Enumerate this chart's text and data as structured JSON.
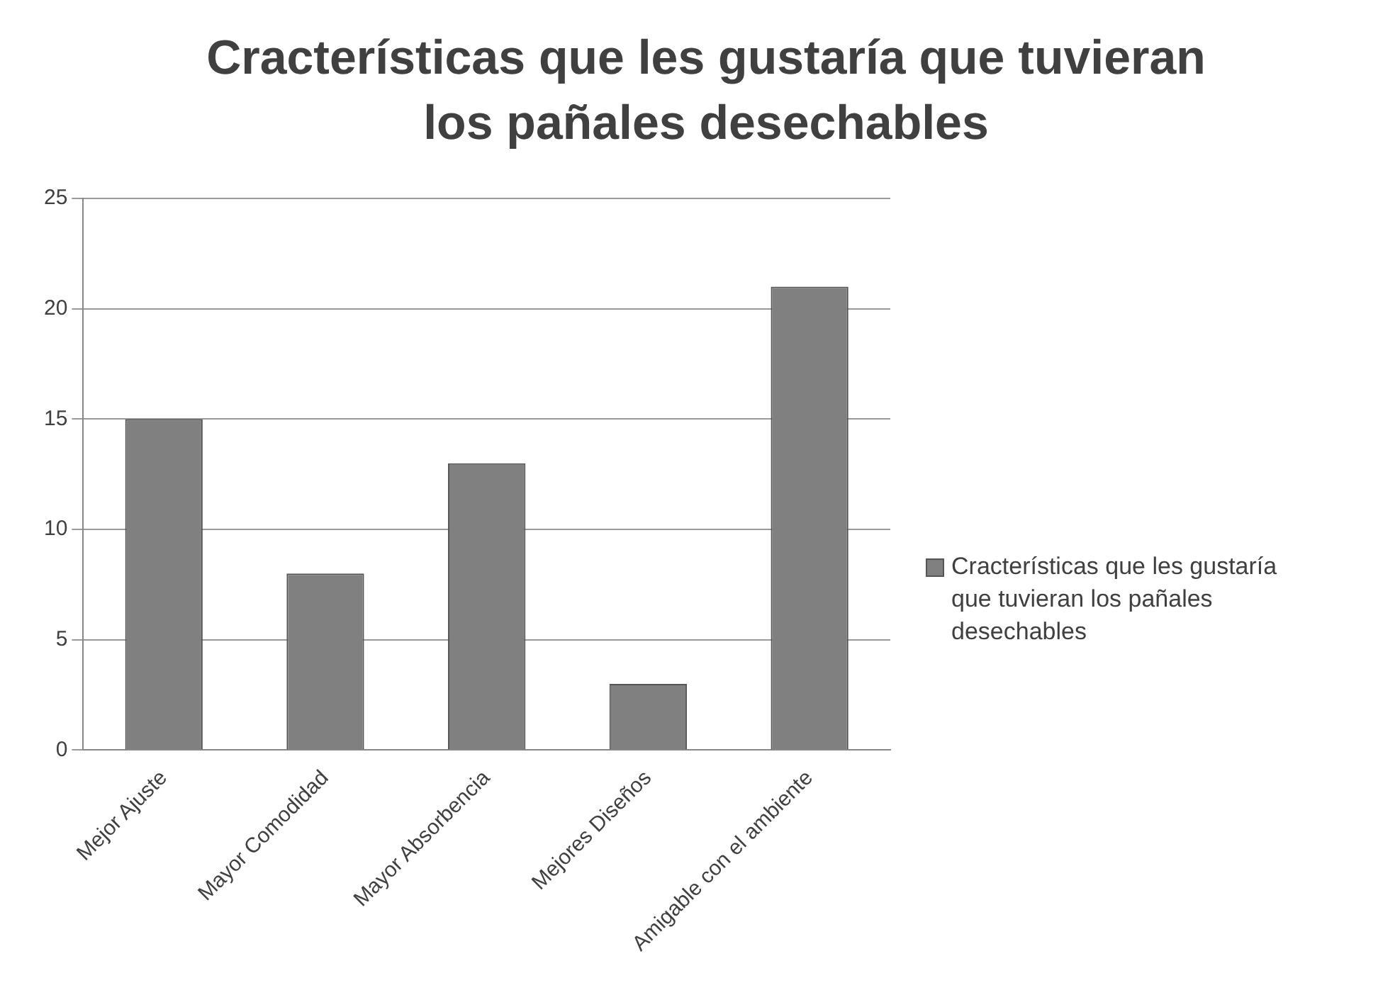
{
  "chart_data": {
    "type": "bar",
    "title": "Cracterísticas que les gustaría que tuvieran los pañales desechables",
    "categories": [
      "Mejor Ajuste",
      "Mayor Comodidad",
      "Mayor Absorbencia",
      "Mejores Diseños",
      "Amigable con el ambiente"
    ],
    "series": [
      {
        "name": "Cracterísticas que les gustaría que tuvieran los pañales desechables",
        "color": "#808080",
        "values": [
          15,
          8,
          13,
          3,
          21
        ]
      }
    ],
    "ylim": [
      0,
      25
    ],
    "yticks": [
      0,
      5,
      10,
      15,
      20,
      25
    ],
    "grid": "y",
    "legend": "right"
  }
}
